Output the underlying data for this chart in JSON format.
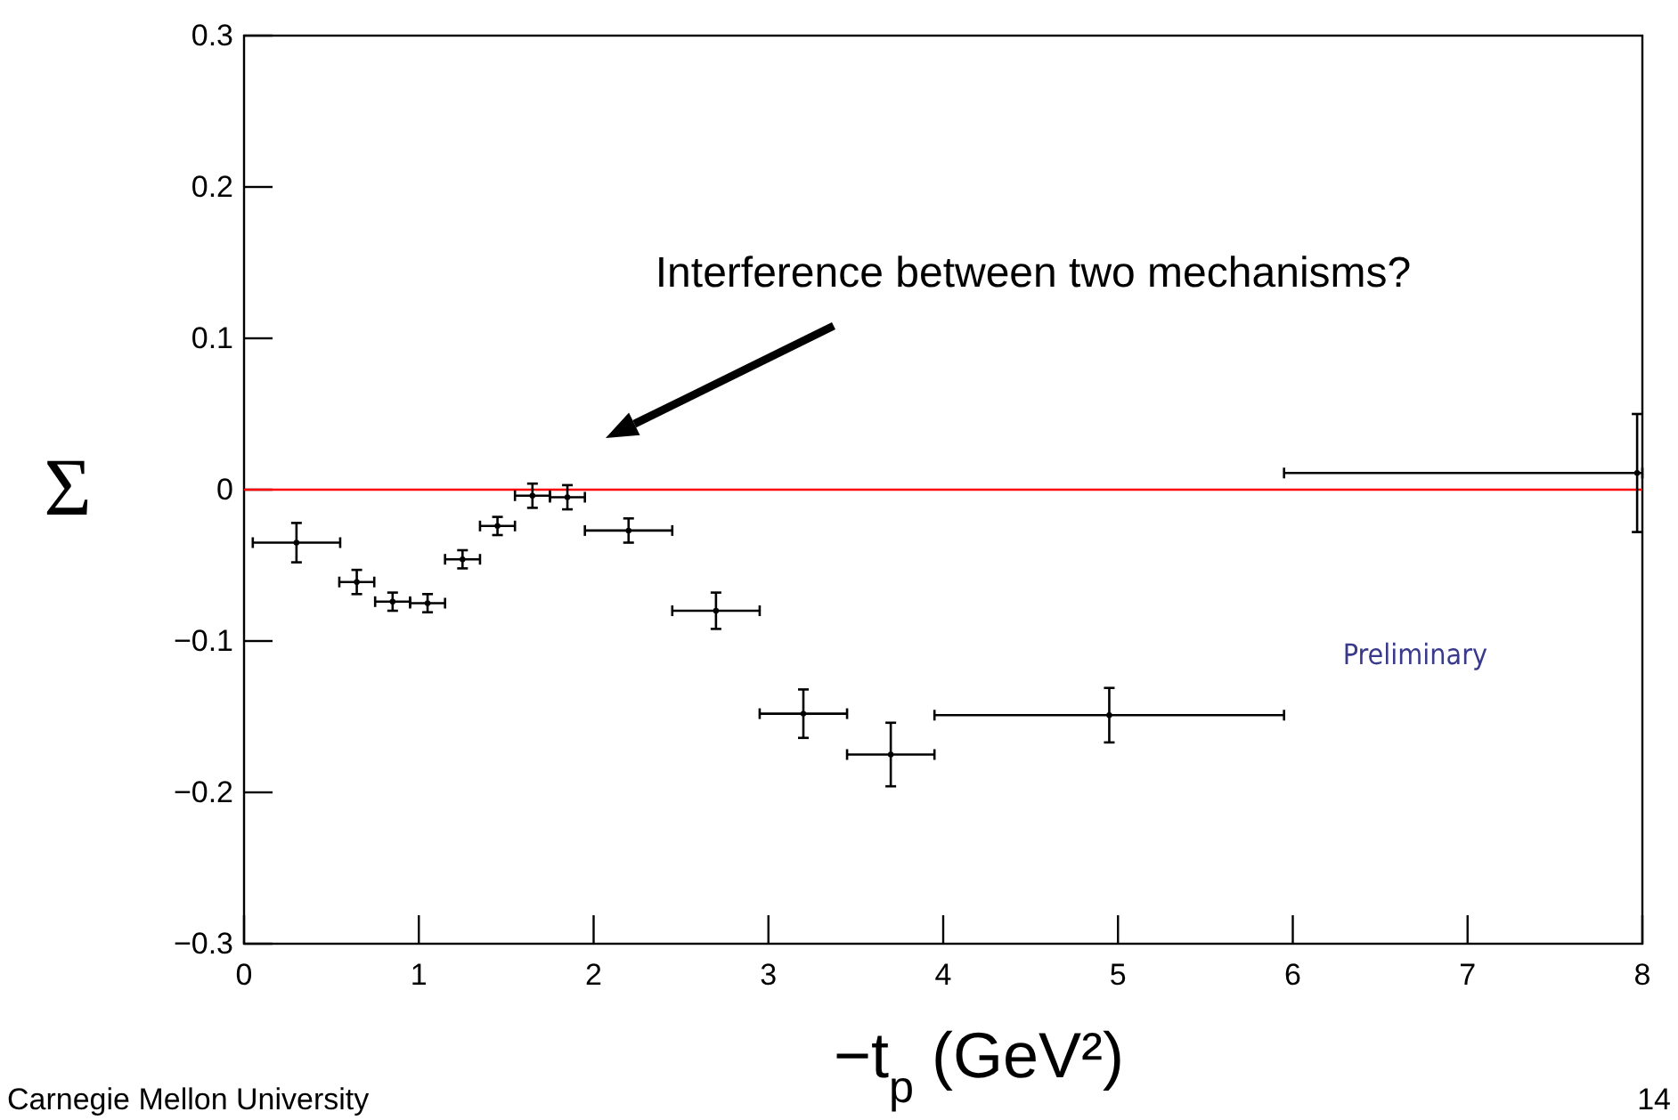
{
  "chart_data": {
    "type": "scatter",
    "xlabel": "−t$_{p}$ (GeV²)",
    "ylabel": "Σ",
    "x": [
      0.3,
      0.645,
      0.85,
      1.05,
      1.25,
      1.45,
      1.65,
      1.85,
      2.2,
      2.7,
      3.2,
      3.7,
      4.95,
      7.97
    ],
    "values": [
      -0.035,
      -0.061,
      -0.074,
      -0.075,
      -0.046,
      -0.024,
      -0.004,
      -0.005,
      -0.027,
      -0.08,
      -0.148,
      -0.175,
      -0.149,
      0.011
    ],
    "errors": [
      0.013,
      0.008,
      0.006,
      0.006,
      0.006,
      0.006,
      0.008,
      0.008,
      0.008,
      0.012,
      0.016,
      0.021,
      0.018,
      0.039
    ],
    "xerrors": [
      0.25,
      0.1,
      0.1,
      0.1,
      0.1,
      0.1,
      0.1,
      0.1,
      0.25,
      0.25,
      0.25,
      0.25,
      1.0,
      [
        5.95,
        8.0
      ]
    ],
    "color": "#000000",
    "marker": "circle",
    "xlim": [
      0,
      8
    ],
    "ylim": [
      -0.3,
      0.3
    ],
    "xticks": [
      0,
      1,
      2,
      3,
      4,
      5,
      6,
      7,
      8
    ],
    "yticks": [
      {
        "value": -0.3,
        "label": "−0.3"
      },
      {
        "value": -0.2,
        "label": "−0.2"
      },
      {
        "value": -0.1,
        "label": "−0.1"
      },
      0,
      0.1,
      0.2,
      0.3
    ],
    "grid": false,
    "ref_lines": [
      {
        "axis": "y",
        "value": 0,
        "color": "#ff0000"
      }
    ],
    "annotations": [
      "Interference between two mechanisms?",
      "Preliminary",
      "Carnegie Mellon University",
      "14"
    ]
  }
}
